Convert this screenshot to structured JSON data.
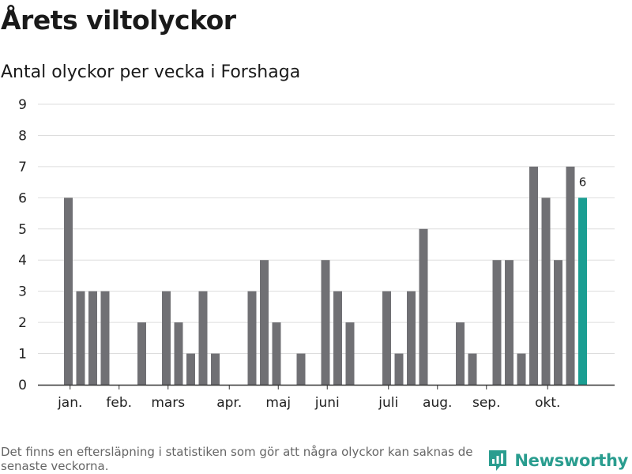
{
  "chart_data": {
    "type": "bar",
    "title": "Årets viltolyckor",
    "subtitle": "Antal olyckor per vecka i Forshaga",
    "values": [
      6,
      3,
      3,
      3,
      0,
      0,
      2,
      0,
      3,
      2,
      1,
      3,
      1,
      0,
      0,
      3,
      4,
      2,
      0,
      1,
      0,
      4,
      3,
      2,
      0,
      0,
      3,
      1,
      3,
      5,
      0,
      0,
      2,
      1,
      0,
      4,
      4,
      1,
      7,
      6,
      4,
      7,
      6
    ],
    "highlight_index": 42,
    "highlight_label": "6",
    "month_labels": [
      {
        "label": "jan.",
        "week": 0.5
      },
      {
        "label": "feb.",
        "week": 4.5
      },
      {
        "label": "mars",
        "week": 8.5
      },
      {
        "label": "apr.",
        "week": 13.5
      },
      {
        "label": "maj",
        "week": 17.5
      },
      {
        "label": "juni",
        "week": 21.5
      },
      {
        "label": "juli",
        "week": 26.5
      },
      {
        "label": "aug.",
        "week": 30.5
      },
      {
        "label": "sep.",
        "week": 34.5
      },
      {
        "label": "okt.",
        "week": 39.5
      }
    ],
    "yticks": [
      0,
      1,
      2,
      3,
      4,
      5,
      6,
      7,
      8,
      9
    ],
    "ylim": [
      0,
      9
    ],
    "grid": true,
    "colors": {
      "bar": "#707074",
      "highlight": "#1a9e92",
      "grid": "#dddddd",
      "axis": "#333333"
    }
  },
  "footnote": "Det finns en eftersläpning i statistiken som gör att några olyckor kan saknas de senaste veckorna.",
  "brand": {
    "name": "Newsworthy",
    "icon": "newsworthy-logo-icon",
    "color": "#2a9d8f"
  }
}
